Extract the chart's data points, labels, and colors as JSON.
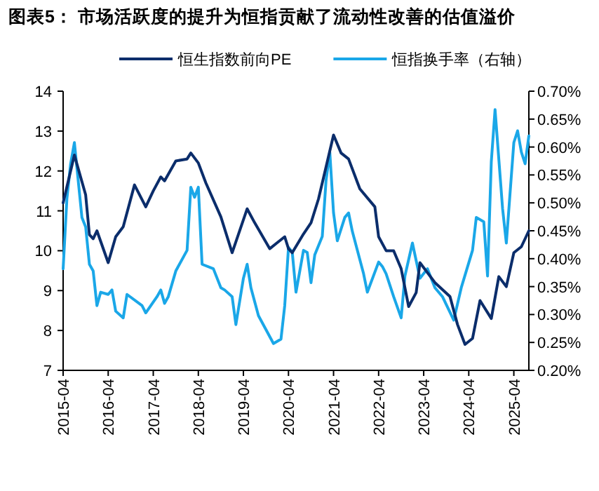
{
  "chart_data": {
    "type": "line",
    "title": "图表5：  市场活跃度的提升为恒指贡献了流动性改善的估值溢价",
    "legend": "top",
    "xlim": [
      "2015-04",
      "2025-08"
    ],
    "xticks": [
      "2015-04",
      "2016-04",
      "2017-04",
      "2018-04",
      "2019-04",
      "2020-04",
      "2021-04",
      "2022-04",
      "2023-04",
      "2024-04",
      "2025-04"
    ],
    "ylim": [
      7,
      14
    ],
    "yticks": [
      7,
      8,
      9,
      10,
      11,
      12,
      13,
      14
    ],
    "y2lim": [
      0.2,
      0.7
    ],
    "y2ticks": [
      {
        "value": 0.2,
        "label": "0.20%"
      },
      {
        "value": 0.25,
        "label": "0.25%"
      },
      {
        "value": 0.3,
        "label": "0.30%"
      },
      {
        "value": 0.35,
        "label": "0.35%"
      },
      {
        "value": 0.4,
        "label": "0.40%"
      },
      {
        "value": 0.45,
        "label": "0.45%"
      },
      {
        "value": 0.5,
        "label": "0.50%"
      },
      {
        "value": 0.55,
        "label": "0.55%"
      },
      {
        "value": 0.6,
        "label": "0.60%"
      },
      {
        "value": 0.65,
        "label": "0.65%"
      },
      {
        "value": 0.7,
        "label": "0.70%"
      }
    ],
    "series": [
      {
        "name": "恒生指数前向PE",
        "color": "#0b2d6b",
        "x": [
          "2015-04",
          "2015-07",
          "2015-10",
          "2015-11",
          "2015-12",
          "2016-01",
          "2016-04",
          "2016-06",
          "2016-08",
          "2016-11",
          "2017-02",
          "2017-04",
          "2017-06",
          "2017-07",
          "2017-10",
          "2018-01",
          "2018-02",
          "2018-04",
          "2018-06",
          "2018-10",
          "2019-01",
          "2019-05",
          "2019-07",
          "2019-11",
          "2020-01",
          "2020-03",
          "2020-04",
          "2020-05",
          "2020-08",
          "2020-10",
          "2020-12",
          "2021-04",
          "2021-06",
          "2021-08",
          "2021-11",
          "2022-03",
          "2022-04",
          "2022-06",
          "2022-08",
          "2022-10",
          "2022-12",
          "2023-02",
          "2023-03",
          "2023-07",
          "2023-11",
          "2024-01",
          "2024-03",
          "2024-05",
          "2024-07",
          "2024-10",
          "2024-12",
          "2025-02",
          "2025-04",
          "2025-06",
          "2025-08"
        ],
        "values": [
          11.2,
          12.4,
          11.4,
          10.4,
          10.3,
          10.5,
          9.7,
          10.35,
          10.6,
          11.65,
          11.1,
          11.5,
          11.85,
          11.75,
          12.25,
          12.3,
          12.45,
          12.2,
          11.7,
          10.85,
          9.95,
          11.05,
          10.7,
          10.05,
          10.2,
          10.35,
          10.05,
          9.95,
          10.42,
          10.7,
          11.3,
          12.9,
          12.45,
          12.3,
          11.55,
          11.1,
          10.35,
          10.0,
          10.0,
          9.55,
          8.6,
          8.95,
          9.7,
          9.2,
          8.85,
          8.15,
          7.65,
          7.8,
          8.75,
          8.3,
          9.35,
          9.1,
          9.95,
          10.1,
          10.5
        ]
      },
      {
        "name": "恒指换手率（右轴）",
        "color": "#1aa7e8",
        "axis": "y2",
        "x": [
          "2015-04",
          "2015-05",
          "2015-06",
          "2015-07",
          "2015-09",
          "2015-10",
          "2015-11",
          "2015-12",
          "2016-01",
          "2016-02",
          "2016-04",
          "2016-05",
          "2016-06",
          "2016-08",
          "2016-09",
          "2017-01",
          "2017-02",
          "2017-05",
          "2017-06",
          "2017-07",
          "2017-08",
          "2017-10",
          "2018-01",
          "2018-02",
          "2018-03",
          "2018-04",
          "2018-05",
          "2018-08",
          "2018-10",
          "2018-11",
          "2019-01",
          "2019-02",
          "2019-04",
          "2019-05",
          "2019-06",
          "2019-08",
          "2019-12",
          "2020-02",
          "2020-03",
          "2020-04",
          "2020-05",
          "2020-06",
          "2020-08",
          "2020-09",
          "2020-10",
          "2020-11",
          "2021-01",
          "2021-02",
          "2021-03",
          "2021-04",
          "2021-05",
          "2021-07",
          "2021-08",
          "2021-09",
          "2021-12",
          "2022-01",
          "2022-04",
          "2022-05",
          "2022-06",
          "2022-08",
          "2022-10",
          "2022-11",
          "2023-01",
          "2023-03",
          "2023-05",
          "2023-07",
          "2023-09",
          "2023-12",
          "2024-02",
          "2024-05",
          "2024-06",
          "2024-08",
          "2024-09",
          "2024-10",
          "2024-11",
          "2025-01",
          "2025-02",
          "2025-04",
          "2025-05",
          "2025-06",
          "2025-07",
          "2025-08"
        ],
        "values": [
          0.382,
          0.507,
          0.57,
          0.608,
          0.474,
          0.457,
          0.39,
          0.378,
          0.316,
          0.34,
          0.336,
          0.344,
          0.306,
          0.294,
          0.336,
          0.316,
          0.303,
          0.332,
          0.344,
          0.32,
          0.332,
          0.378,
          0.415,
          0.528,
          0.51,
          0.528,
          0.39,
          0.382,
          0.348,
          0.344,
          0.332,
          0.282,
          0.365,
          0.39,
          0.348,
          0.298,
          0.248,
          0.256,
          0.316,
          0.42,
          0.412,
          0.34,
          0.415,
          0.411,
          0.357,
          0.407,
          0.44,
          0.54,
          0.591,
          0.482,
          0.432,
          0.474,
          0.482,
          0.449,
          0.373,
          0.34,
          0.394,
          0.386,
          0.373,
          0.332,
          0.294,
          0.369,
          0.428,
          0.365,
          0.382,
          0.348,
          0.332,
          0.29,
          0.348,
          0.415,
          0.474,
          0.466,
          0.369,
          0.574,
          0.667,
          0.49,
          0.428,
          0.608,
          0.629,
          0.591,
          0.57,
          0.62
        ]
      }
    ]
  }
}
